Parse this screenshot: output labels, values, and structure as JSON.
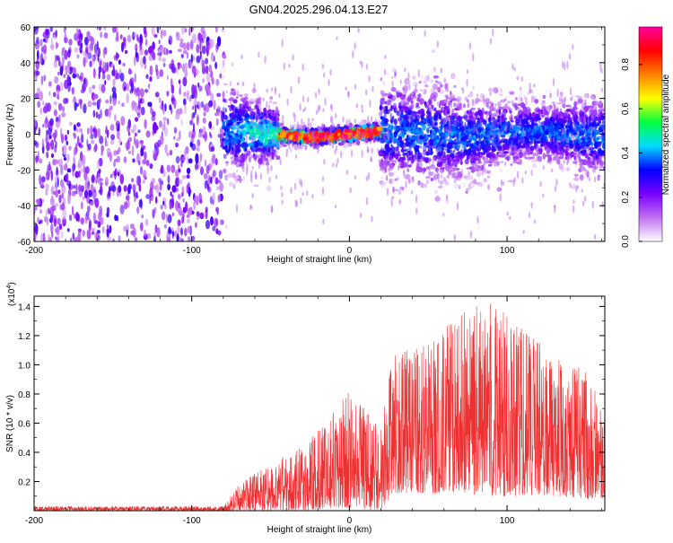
{
  "chart_data": [
    {
      "type": "heatmap",
      "title": "GN04.2025.296.04.13.E27",
      "xlabel": "Height of straight line (km)",
      "ylabel": "Frequency (Hz)",
      "xlim": [
        -200,
        162
      ],
      "ylim": [
        -60,
        60
      ],
      "xticks": [
        -200,
        -100,
        0,
        100
      ],
      "yticks": [
        -60,
        -40,
        -20,
        0,
        20,
        40,
        60
      ],
      "grid": false,
      "colorbar": {
        "label": "Normalized spectral amplitude",
        "range": [
          0.0,
          0.97
        ],
        "ticks": [
          0.0,
          0.2,
          0.4,
          0.6,
          0.8
        ],
        "colormap": [
          "#ffffff",
          "#c070f0",
          "#7a00ff",
          "#0000ff",
          "#00ddff",
          "#00ff40",
          "#ffff00",
          "#ff8000",
          "#ff0000",
          "#ff00a0"
        ]
      },
      "regions": [
        {
          "x_from": -200,
          "x_to": -80,
          "freq_spread": 60,
          "amplitude": 0.12,
          "description": "noise"
        },
        {
          "x_from": -80,
          "x_to": -45,
          "freq_spread": 18,
          "amplitude": 0.45
        },
        {
          "x_from": -45,
          "x_to": 20,
          "freq_spread": 5,
          "amplitude": 0.95
        },
        {
          "x_from": 20,
          "x_to": 162,
          "freq_spread": 22,
          "amplitude": 0.35
        }
      ]
    },
    {
      "type": "line",
      "xlabel": "Height of straight line (km)",
      "ylabel": "SNR (10 * v/v)",
      "y_multiplier": "(x10^4)",
      "y_multiplier_base": "(x10",
      "y_multiplier_exp": "4",
      "y_multiplier_close": ")",
      "xlim": [
        -200,
        162
      ],
      "ylim": [
        0,
        1.47
      ],
      "xticks": [
        -200,
        -100,
        0,
        100
      ],
      "yticks": [
        0.2,
        0.4,
        0.6,
        0.8,
        1.0,
        1.2,
        1.4
      ],
      "grid": false,
      "series_color": "#ee3030",
      "envelope": [
        {
          "x": -200,
          "min": 0.0,
          "max": 0.03
        },
        {
          "x": -80,
          "min": 0.0,
          "max": 0.03
        },
        {
          "x": -70,
          "min": 0.0,
          "max": 0.18
        },
        {
          "x": -50,
          "min": 0.0,
          "max": 0.33
        },
        {
          "x": -30,
          "min": 0.0,
          "max": 0.45
        },
        {
          "x": -10,
          "min": 0.02,
          "max": 0.68
        },
        {
          "x": 0,
          "min": 0.02,
          "max": 0.82
        },
        {
          "x": 20,
          "min": 0.0,
          "max": 0.58
        },
        {
          "x": 28,
          "min": 0.12,
          "max": 1.1
        },
        {
          "x": 50,
          "min": 0.12,
          "max": 1.15
        },
        {
          "x": 70,
          "min": 0.12,
          "max": 1.35
        },
        {
          "x": 90,
          "min": 0.1,
          "max": 1.45
        },
        {
          "x": 110,
          "min": 0.1,
          "max": 1.25
        },
        {
          "x": 130,
          "min": 0.1,
          "max": 1.1
        },
        {
          "x": 150,
          "min": 0.08,
          "max": 0.95
        },
        {
          "x": 162,
          "min": 0.08,
          "max": 0.7
        }
      ]
    }
  ]
}
